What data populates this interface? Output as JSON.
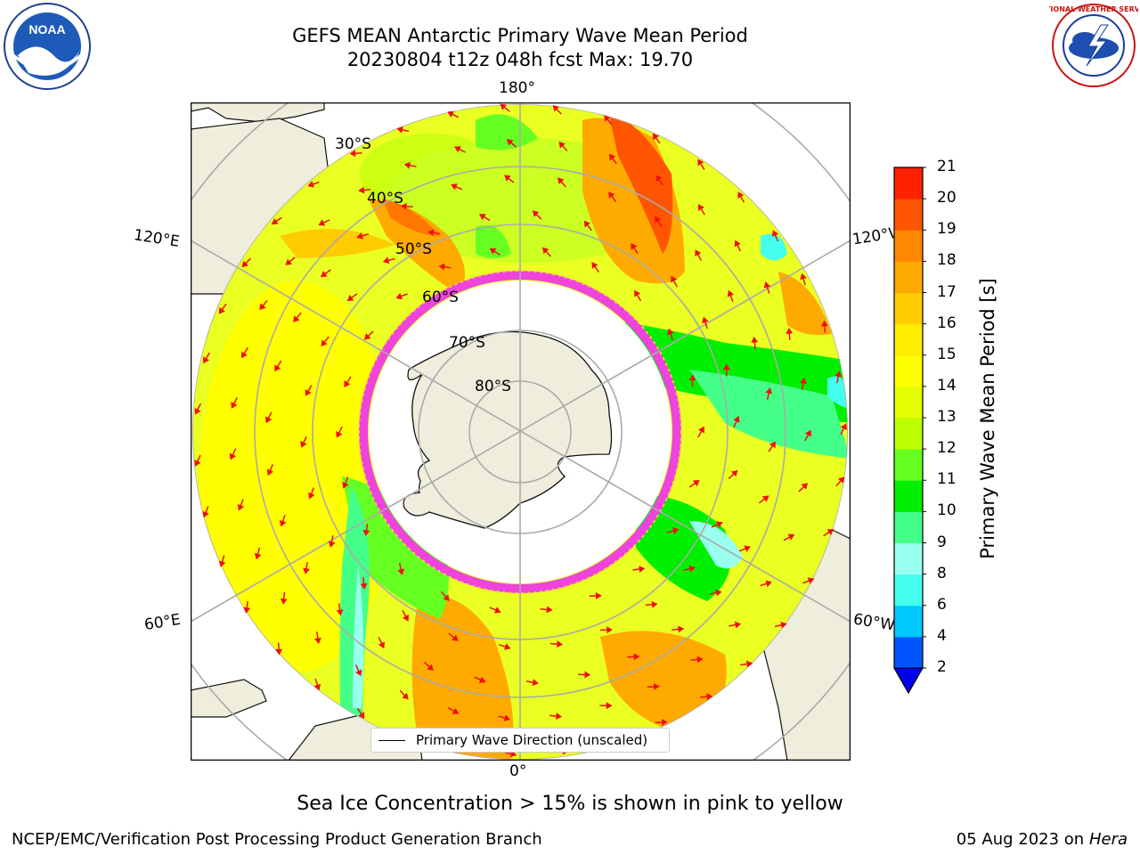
{
  "title": {
    "line1": "GEFS MEAN Antarctic Primary Wave Mean Period",
    "line2": "20230804 t12z 048h fcst   Max: 19.70"
  },
  "map": {
    "longitude_labels": {
      "top": "180°",
      "bottom": "0°",
      "upper_left": "120°E",
      "upper_right": "120°W",
      "lower_left": "60°E",
      "lower_right": "60°W"
    },
    "latitude_labels": [
      "30°S",
      "40°S",
      "50°S",
      "60°S",
      "70°S",
      "80°S"
    ],
    "legend_label": "Primary Wave Direction (unscaled)",
    "colors": {
      "land": "#efeedc",
      "sea_ice": "#ffffff",
      "ice_edge": "#ee44dd",
      "arrows": "#ee1111",
      "graticule": "#aaaaaa"
    }
  },
  "colorbar": {
    "label": "Primary Wave Mean Period [s]",
    "ticks": [
      "2",
      "4",
      "6",
      "8",
      "9",
      "10",
      "11",
      "12",
      "13",
      "14",
      "15",
      "16",
      "17",
      "18",
      "19",
      "20",
      "21"
    ],
    "colors": [
      "#0055ff",
      "#00c8ff",
      "#44ffee",
      "#99ffee",
      "#44ff88",
      "#00ee00",
      "#66ff22",
      "#bbff00",
      "#e6ff00",
      "#ffff00",
      "#ffee00",
      "#ffcc00",
      "#ffaa00",
      "#ff8800",
      "#ff5500",
      "#ff2200",
      "#ff0000"
    ],
    "extend_min_color": "#0000ee"
  },
  "footer": {
    "note": "Sea Ice Concentration > 15% is shown in pink to yellow",
    "credit": "NCEP/EMC/Verification Post Processing Product Generation Branch",
    "date": "05 Aug 2023 on",
    "host": "Hera"
  },
  "logos": {
    "left_text": "NOAA",
    "right_text": "NATIONAL WEATHER SERVICE"
  }
}
